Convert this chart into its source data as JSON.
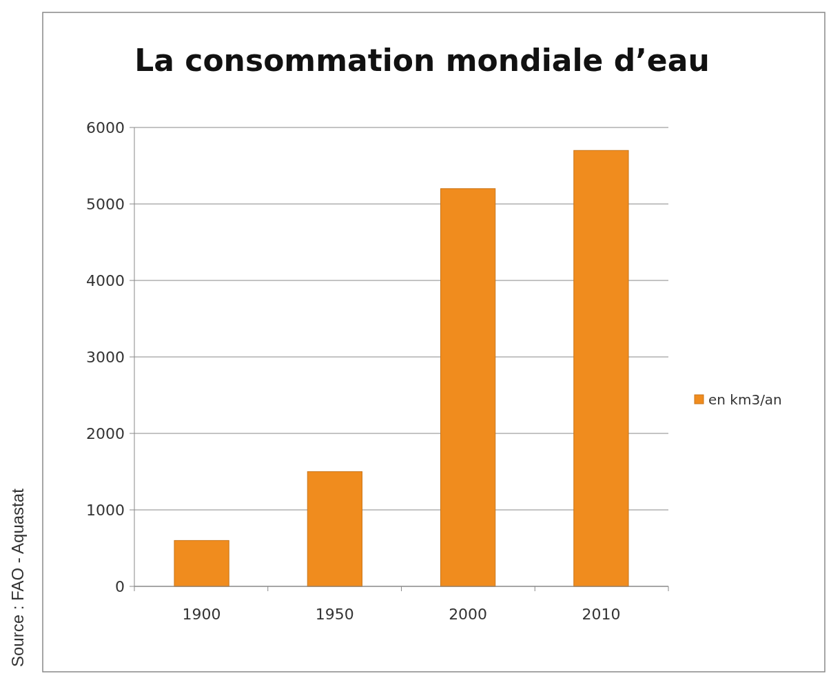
{
  "chart_data": {
    "type": "bar",
    "title": "La consommation mondiale d’eau",
    "categories": [
      "1900",
      "1950",
      "2000",
      "2010"
    ],
    "series": [
      {
        "name": "en km3/an",
        "color": "#f08c1e",
        "values": [
          600,
          1500,
          5200,
          5700
        ]
      }
    ],
    "ylim": [
      0,
      6000
    ],
    "yticks": [
      0,
      1000,
      2000,
      3000,
      4000,
      5000,
      6000
    ],
    "grid": "y",
    "legend": "right",
    "annotations": [
      "Source : FAO - Aquastat"
    ]
  }
}
